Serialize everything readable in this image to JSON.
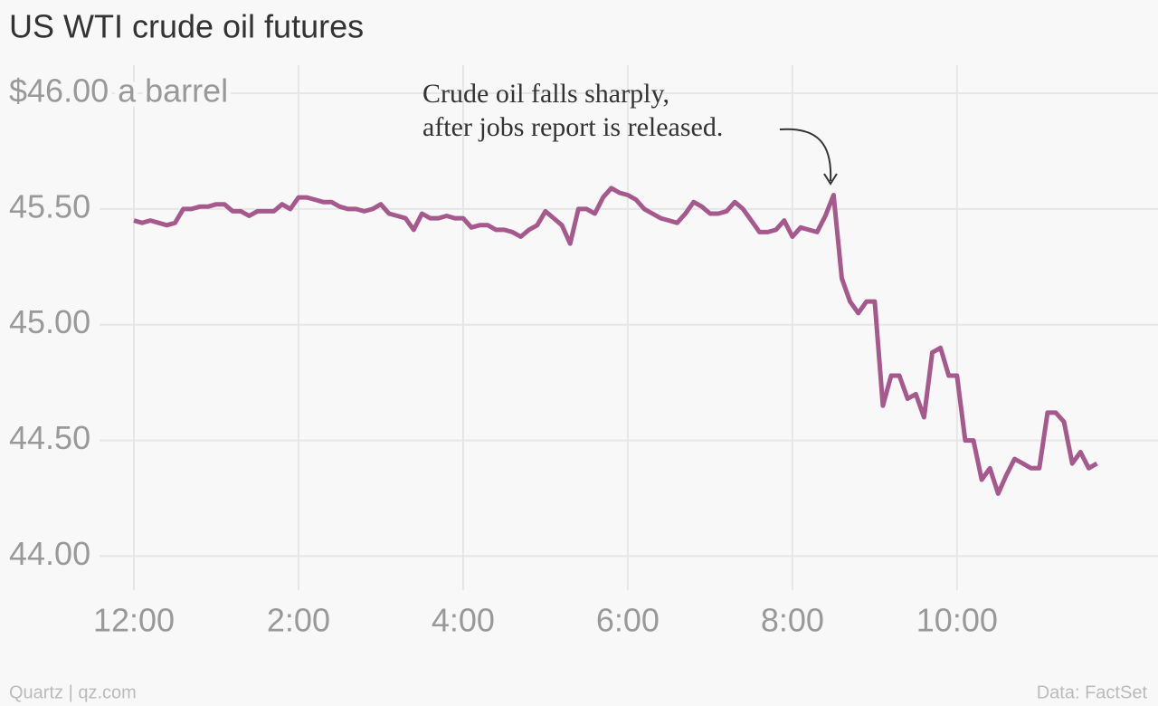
{
  "chart_data": {
    "type": "line",
    "title": "US WTI crude oil futures",
    "annotation": [
      "Crude oil falls sharply,",
      "after jobs report is released."
    ],
    "source": "Data: FactSet",
    "credit": "Quartz | qz.com",
    "color": "#a6598d",
    "grid": true,
    "xlim": [
      -0.5,
      12.2
    ],
    "xticks": [
      {
        "value": 0,
        "label": "12:00"
      },
      {
        "value": 2,
        "label": "2:00"
      },
      {
        "value": 4,
        "label": "4:00"
      },
      {
        "value": 6,
        "label": "6:00"
      },
      {
        "value": 8,
        "label": "8:00"
      },
      {
        "value": 10,
        "label": "10:00"
      }
    ],
    "ylim": [
      43.9,
      46.0
    ],
    "yticks": [
      {
        "value": 44,
        "label": "44.00"
      },
      {
        "value": 44.5,
        "label": "44.50"
      },
      {
        "value": 45,
        "label": "45.00"
      },
      {
        "value": 45.5,
        "label": "45.50"
      },
      {
        "value": 46,
        "label": "$46.00 a barrel"
      }
    ],
    "x": [
      0,
      0.1,
      0.2,
      0.3,
      0.4,
      0.5,
      0.6,
      0.7,
      0.8,
      0.9,
      1,
      1.1,
      1.2,
      1.3,
      1.4,
      1.5,
      1.6,
      1.7,
      1.8,
      1.9,
      2,
      2.1,
      2.2,
      2.3,
      2.4,
      2.5,
      2.6,
      2.7,
      2.8,
      2.9,
      3,
      3.1,
      3.2,
      3.3,
      3.4,
      3.5,
      3.6,
      3.7,
      3.8,
      3.9,
      4,
      4.1,
      4.2,
      4.3,
      4.4,
      4.5,
      4.6,
      4.7,
      4.8,
      4.9,
      5,
      5.1,
      5.2,
      5.3,
      5.4,
      5.5,
      5.6,
      5.7,
      5.8,
      5.9,
      6,
      6.1,
      6.2,
      6.3,
      6.4,
      6.5,
      6.6,
      6.7,
      6.8,
      6.9,
      7,
      7.1,
      7.2,
      7.3,
      7.4,
      7.5,
      7.6,
      7.7,
      7.8,
      7.9,
      8,
      8.1,
      8.2,
      8.3,
      8.4,
      8.5,
      8.6,
      8.7,
      8.8,
      8.9,
      9,
      9.1,
      9.2,
      9.3,
      9.4,
      9.5,
      9.6,
      9.7,
      9.8,
      9.9,
      10,
      10.1,
      10.2,
      10.3,
      10.4,
      10.5,
      10.6,
      10.7,
      10.8,
      10.9,
      11,
      11.1,
      11.2,
      11.3,
      11.4,
      11.5,
      11.6,
      11.7
    ],
    "values": [
      45.45,
      45.44,
      45.45,
      45.44,
      45.43,
      45.44,
      45.5,
      45.5,
      45.51,
      45.51,
      45.52,
      45.52,
      45.49,
      45.49,
      45.47,
      45.49,
      45.49,
      45.49,
      45.52,
      45.5,
      45.55,
      45.55,
      45.54,
      45.53,
      45.53,
      45.51,
      45.5,
      45.5,
      45.49,
      45.5,
      45.52,
      45.48,
      45.47,
      45.46,
      45.41,
      45.48,
      45.46,
      45.46,
      45.47,
      45.46,
      45.46,
      45.42,
      45.43,
      45.43,
      45.41,
      45.41,
      45.4,
      45.38,
      45.41,
      45.43,
      45.49,
      45.46,
      45.43,
      45.35,
      45.5,
      45.5,
      45.48,
      45.55,
      45.59,
      45.57,
      45.56,
      45.54,
      45.5,
      45.48,
      45.46,
      45.45,
      45.44,
      45.48,
      45.53,
      45.51,
      45.48,
      45.48,
      45.49,
      45.53,
      45.5,
      45.45,
      45.4,
      45.4,
      45.41,
      45.45,
      45.38,
      45.42,
      45.41,
      45.4,
      45.47,
      45.56,
      45.2,
      45.1,
      45.05,
      45.1,
      45.1,
      44.65,
      44.78,
      44.78,
      44.68,
      44.7,
      44.6,
      44.88,
      44.9,
      44.78,
      44.78,
      44.5,
      44.5,
      44.33,
      44.38,
      44.27,
      44.35,
      44.42,
      44.4,
      44.38,
      44.38,
      44.62,
      44.62,
      44.58,
      44.4,
      44.45,
      44.38,
      44.4
    ]
  }
}
